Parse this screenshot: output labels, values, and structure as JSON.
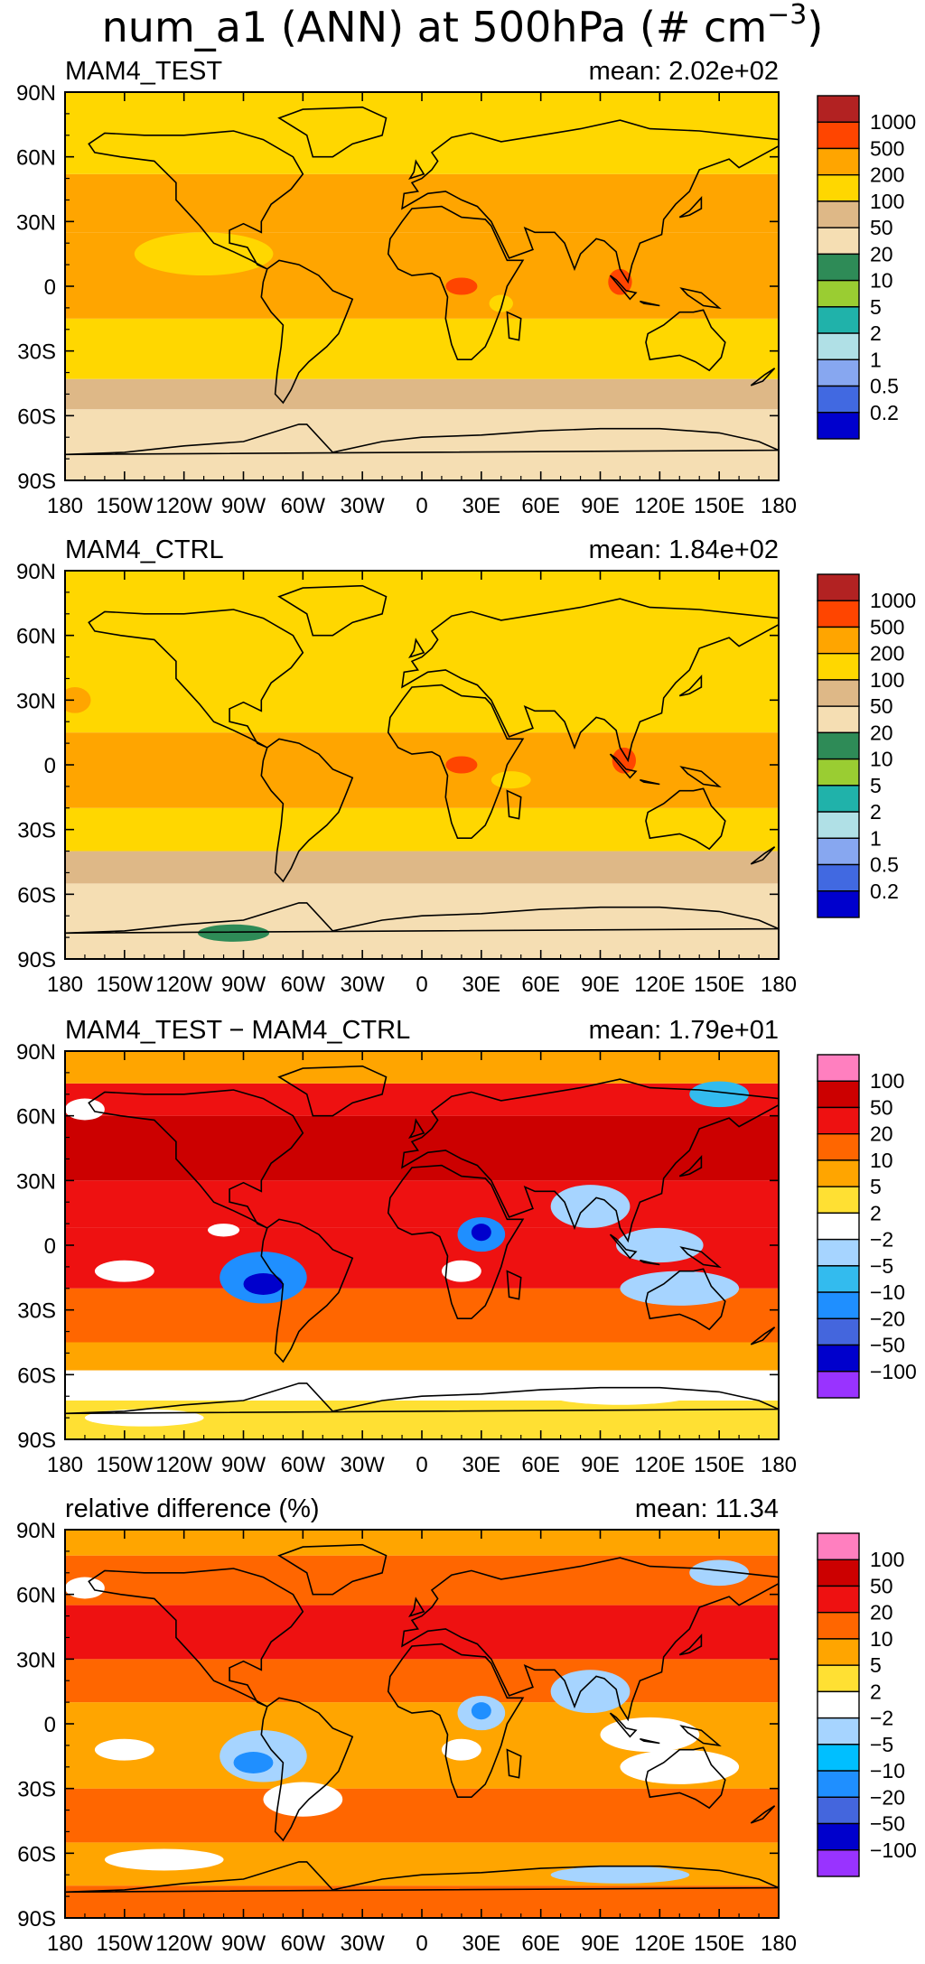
{
  "figure": {
    "title_main": "num_a1 (ANN) at 500hPa (# cm",
    "title_sup": "−3",
    "title_close": ")"
  },
  "chart_data": [
    {
      "type": "heatmap",
      "title": "MAM4_TEST",
      "mean_label": "mean: 2.02e+02",
      "xlabel": "",
      "ylabel": "",
      "xlim": [
        -180,
        180
      ],
      "ylim": [
        -90,
        90
      ],
      "x_ticks": [
        "180",
        "150W",
        "120W",
        "90W",
        "60W",
        "30W",
        "0",
        "30E",
        "60E",
        "90E",
        "120E",
        "150E",
        "180"
      ],
      "y_ticks": [
        "90N",
        "60N",
        "30N",
        "0",
        "30S",
        "60S",
        "90S"
      ],
      "colorbar": {
        "labels": [
          "1000",
          "500",
          "200",
          "100",
          "50",
          "20",
          "10",
          "5",
          "2",
          "1",
          "0.5",
          "0.2"
        ],
        "colors": [
          "#b22222",
          "#ff4500",
          "#ffa500",
          "#ffd700",
          "#deb887",
          "#f5deb3",
          "#2e8b57",
          "#9acd32",
          "#20b2aa",
          "#b0e0e6",
          "#87a7f0",
          "#4169e1",
          "#0000cd"
        ]
      },
      "bands": [
        {
          "lat": [
            -90,
            -57
          ],
          "color": "#f5deb3"
        },
        {
          "lat": [
            -57,
            -43
          ],
          "color": "#deb887"
        },
        {
          "lat": [
            -43,
            -15
          ],
          "color": "#ffd700"
        },
        {
          "lat": [
            -15,
            25
          ],
          "color": "#ffa500"
        },
        {
          "lat": [
            25,
            52
          ],
          "color": "#ffa500"
        },
        {
          "lat": [
            52,
            90
          ],
          "color": "#ffd700"
        }
      ]
    },
    {
      "type": "heatmap",
      "title": "MAM4_CTRL",
      "mean_label": "mean: 1.84e+02",
      "xlabel": "",
      "ylabel": "",
      "xlim": [
        -180,
        180
      ],
      "ylim": [
        -90,
        90
      ],
      "x_ticks": [
        "180",
        "150W",
        "120W",
        "90W",
        "60W",
        "30W",
        "0",
        "30E",
        "60E",
        "90E",
        "120E",
        "150E",
        "180"
      ],
      "y_ticks": [
        "90N",
        "60N",
        "30N",
        "0",
        "30S",
        "60S",
        "90S"
      ],
      "colorbar": {
        "labels": [
          "1000",
          "500",
          "200",
          "100",
          "50",
          "20",
          "10",
          "5",
          "2",
          "1",
          "0.5",
          "0.2"
        ],
        "colors": [
          "#b22222",
          "#ff4500",
          "#ffa500",
          "#ffd700",
          "#deb887",
          "#f5deb3",
          "#2e8b57",
          "#9acd32",
          "#20b2aa",
          "#b0e0e6",
          "#87a7f0",
          "#4169e1",
          "#0000cd"
        ]
      },
      "bands": [
        {
          "lat": [
            -90,
            -55
          ],
          "color": "#f5deb3"
        },
        {
          "lat": [
            -55,
            -40
          ],
          "color": "#deb887"
        },
        {
          "lat": [
            -40,
            -20
          ],
          "color": "#ffd700"
        },
        {
          "lat": [
            -20,
            15
          ],
          "color": "#ffa500"
        },
        {
          "lat": [
            15,
            90
          ],
          "color": "#ffd700"
        }
      ]
    },
    {
      "type": "heatmap",
      "title": "MAM4_TEST − MAM4_CTRL",
      "mean_label": "mean: 1.79e+01",
      "xlabel": "",
      "ylabel": "",
      "xlim": [
        -180,
        180
      ],
      "ylim": [
        -90,
        90
      ],
      "x_ticks": [
        "180",
        "150W",
        "120W",
        "90W",
        "60W",
        "30W",
        "0",
        "30E",
        "60E",
        "90E",
        "120E",
        "150E",
        "180"
      ],
      "y_ticks": [
        "90N",
        "60N",
        "30N",
        "0",
        "30S",
        "60S",
        "90S"
      ],
      "colorbar": {
        "labels": [
          "100",
          "50",
          "20",
          "10",
          "5",
          "2",
          "−2",
          "−5",
          "−10",
          "−20",
          "−50",
          "−100"
        ],
        "colors": [
          "#ff7fbf",
          "#cc0000",
          "#ee1111",
          "#ff6600",
          "#ffa500",
          "#ffe033",
          "#ffffff",
          "#a6d4ff",
          "#33bbee",
          "#1f8fff",
          "#4466dd",
          "#0000cc",
          "#9933ff"
        ]
      },
      "bands": [
        {
          "lat": [
            -90,
            -72
          ],
          "color": "#ffe033"
        },
        {
          "lat": [
            -72,
            -58
          ],
          "color": "#ffffff"
        },
        {
          "lat": [
            -58,
            -45
          ],
          "color": "#ffa500"
        },
        {
          "lat": [
            -45,
            -20
          ],
          "color": "#ff6600"
        },
        {
          "lat": [
            -20,
            8
          ],
          "color": "#ee1111"
        },
        {
          "lat": [
            8,
            30
          ],
          "color": "#ee1111"
        },
        {
          "lat": [
            30,
            60
          ],
          "color": "#cc0000"
        },
        {
          "lat": [
            60,
            75
          ],
          "color": "#ee1111"
        },
        {
          "lat": [
            75,
            90
          ],
          "color": "#ffa500"
        }
      ]
    },
    {
      "type": "heatmap",
      "title": "relative difference (%)",
      "mean_label": "mean: 11.34",
      "xlabel": "",
      "ylabel": "",
      "xlim": [
        -180,
        180
      ],
      "ylim": [
        -90,
        90
      ],
      "x_ticks": [
        "180",
        "150W",
        "120W",
        "90W",
        "60W",
        "30W",
        "0",
        "30E",
        "60E",
        "90E",
        "120E",
        "150E",
        "180"
      ],
      "y_ticks": [
        "90N",
        "60N",
        "30N",
        "0",
        "30S",
        "60S",
        "90S"
      ],
      "colorbar": {
        "labels": [
          "100",
          "50",
          "20",
          "10",
          "5",
          "2",
          "−2",
          "−5",
          "−10",
          "−20",
          "−50",
          "−100"
        ],
        "colors": [
          "#ff7fbf",
          "#cc0000",
          "#ee1111",
          "#ff6600",
          "#ffa500",
          "#ffe033",
          "#ffffff",
          "#a6d4ff",
          "#00bfff",
          "#1f8fff",
          "#4466dd",
          "#0000cc",
          "#9933ff"
        ]
      },
      "bands": [
        {
          "lat": [
            -90,
            -75
          ],
          "color": "#ff6600"
        },
        {
          "lat": [
            -75,
            -55
          ],
          "color": "#ffa500"
        },
        {
          "lat": [
            -55,
            -30
          ],
          "color": "#ff6600"
        },
        {
          "lat": [
            -30,
            10
          ],
          "color": "#ffa500"
        },
        {
          "lat": [
            10,
            30
          ],
          "color": "#ff6600"
        },
        {
          "lat": [
            30,
            55
          ],
          "color": "#ee1111"
        },
        {
          "lat": [
            55,
            78
          ],
          "color": "#ff6600"
        },
        {
          "lat": [
            78,
            90
          ],
          "color": "#ffa500"
        }
      ]
    }
  ]
}
